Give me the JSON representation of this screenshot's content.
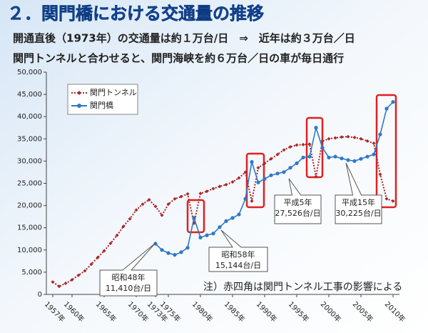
{
  "chart_data": {
    "type": "line",
    "title": "２．関門橋における交通量の推移",
    "subtitle": [
      "開通直後（1973年）の交通量は約１万台/日　⇒　近年は約３万台／日",
      "関門トンネルと合わせると、関門海峡を約６万台／日の車が毎日通行"
    ],
    "x": [
      1957,
      1958,
      1959,
      1960,
      1961,
      1962,
      1963,
      1964,
      1965,
      1966,
      1967,
      1968,
      1969,
      1970,
      1971,
      1972,
      1973,
      1974,
      1975,
      1976,
      1977,
      1978,
      1979,
      1980,
      1981,
      1982,
      1983,
      1984,
      1985,
      1986,
      1987,
      1988,
      1989,
      1990,
      1991,
      1992,
      1993,
      1994,
      1995,
      1996,
      1997,
      1998,
      1999,
      2000,
      2001,
      2002,
      2003,
      2004,
      2005,
      2006,
      2007,
      2008,
      2009,
      2010
    ],
    "series": [
      {
        "name": "関門トンネル",
        "color": "#a8282a",
        "values": [
          2800,
          1800,
          2500,
          3300,
          4300,
          5300,
          6800,
          8300,
          9800,
          11500,
          13300,
          15300,
          17000,
          19000,
          20300,
          21300,
          19800,
          17800,
          20300,
          21500,
          22000,
          22600,
          16000,
          22700,
          23200,
          23800,
          24300,
          24700,
          25300,
          26200,
          27500,
          21000,
          28500,
          29500,
          30500,
          31500,
          32500,
          33200,
          33600,
          33700,
          33800,
          26500,
          34500,
          35000,
          35200,
          35400,
          35500,
          35300,
          35000,
          34500,
          34000,
          27000,
          21500,
          21000
        ]
      },
      {
        "name": "関門橋",
        "color": "#2e78c8",
        "values": [
          null,
          null,
          null,
          null,
          null,
          null,
          null,
          null,
          null,
          null,
          null,
          null,
          null,
          null,
          null,
          null,
          11410,
          10000,
          9300,
          8900,
          9500,
          10500,
          17200,
          12800,
          13300,
          13700,
          15144,
          16500,
          17200,
          18000,
          21500,
          29800,
          25200,
          26000,
          26800,
          27200,
          27526,
          28500,
          29500,
          30800,
          31000,
          37500,
          33000,
          30800,
          31000,
          30600,
          30225,
          30000,
          30500,
          31000,
          31500,
          36000,
          41800,
          43300
        ]
      }
    ],
    "xlim": [
      1956,
      2011
    ],
    "xticks": [
      {
        "value": 1957,
        "label": "1957年"
      },
      {
        "value": 1960,
        "label": "1960年"
      },
      {
        "value": 1965,
        "label": "1965年"
      },
      {
        "value": 1970,
        "label": "1970年"
      },
      {
        "value": 1973,
        "label": "1973年"
      },
      {
        "value": 1975,
        "label": "1975年"
      },
      {
        "value": 1980,
        "label": "1980年"
      },
      {
        "value": 1985,
        "label": "1985年"
      },
      {
        "value": 1990,
        "label": "1990年"
      },
      {
        "value": 1995,
        "label": "1995年"
      },
      {
        "value": 2000,
        "label": "2000年"
      },
      {
        "value": 2005,
        "label": "2005年"
      },
      {
        "value": 2010,
        "label": "2010年"
      }
    ],
    "ylim": [
      0,
      50000
    ],
    "yticks": [
      0,
      {
        "value": 5000,
        "label": "5,000"
      },
      {
        "value": 10000,
        "label": "10,000"
      },
      {
        "value": 15000,
        "label": "15,000"
      },
      {
        "value": 20000,
        "label": "20,000"
      },
      {
        "value": 25000,
        "label": "25,000"
      },
      {
        "value": 30000,
        "label": "30,000"
      },
      {
        "value": 35000,
        "label": "35,000"
      },
      {
        "value": 40000,
        "label": "40,000"
      },
      {
        "value": 45000,
        "label": "45,000"
      },
      {
        "value": 50000,
        "label": "50,000"
      }
    ],
    "legend": "upper left",
    "annotations": [
      [
        "昭和48年",
        "11,410台/日"
      ],
      [
        "昭和58年",
        "15,144台/日"
      ],
      [
        "平成5年",
        "27,526台/日"
      ],
      [
        "平成15年",
        "30,225台/日"
      ]
    ],
    "note": "注）赤四角は関門トンネル工事の影響による"
  }
}
